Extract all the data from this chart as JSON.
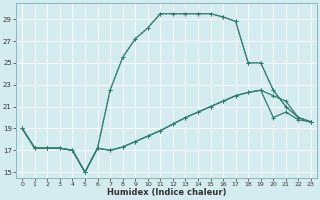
{
  "xlabel": "Humidex (Indice chaleur)",
  "bg_color": "#d4ecf0",
  "grid_color": "#ffffff",
  "line_color": "#2e7d6e",
  "xlim": [
    -0.5,
    23.5
  ],
  "ylim": [
    14.5,
    30.5
  ],
  "xticks": [
    0,
    1,
    2,
    3,
    4,
    5,
    6,
    7,
    8,
    9,
    10,
    11,
    12,
    13,
    14,
    15,
    16,
    17,
    18,
    19,
    20,
    21,
    22,
    23
  ],
  "yticks": [
    15,
    17,
    19,
    21,
    23,
    25,
    27,
    29
  ],
  "line1_y": [
    19,
    17.2,
    17.2,
    17.2,
    17.0,
    15.0,
    17.2,
    17.0,
    17.3,
    17.8,
    18.3,
    18.8,
    19.4,
    20.0,
    20.5,
    21.0,
    21.5,
    22.0,
    22.3,
    22.5,
    20.0,
    20.5,
    19.8,
    19.6
  ],
  "line2_y": [
    19,
    17.2,
    17.2,
    17.2,
    17.0,
    15.0,
    17.2,
    17.0,
    17.3,
    17.8,
    18.3,
    18.8,
    19.4,
    20.0,
    20.5,
    21.0,
    21.5,
    22.0,
    22.3,
    22.5,
    22.0,
    21.5,
    20.0,
    19.6
  ],
  "line3_y": [
    19,
    17.2,
    17.2,
    17.2,
    17.0,
    15.0,
    17.2,
    22.5,
    25.5,
    27.2,
    28.2,
    29.5,
    29.5,
    29.5,
    29.5,
    29.5,
    29.2,
    28.8,
    25.0,
    25.0,
    22.5,
    21.0,
    20.0,
    19.6
  ],
  "line4_y": [
    19,
    17.2,
    17.2,
    17.2,
    17.0,
    15.0,
    17.2,
    22.5,
    25.5,
    27.2,
    28.2,
    29.5,
    29.5,
    29.5,
    29.5,
    29.5,
    29.2,
    28.8,
    25.0,
    25.0,
    22.5,
    21.0,
    20.0,
    19.6
  ]
}
